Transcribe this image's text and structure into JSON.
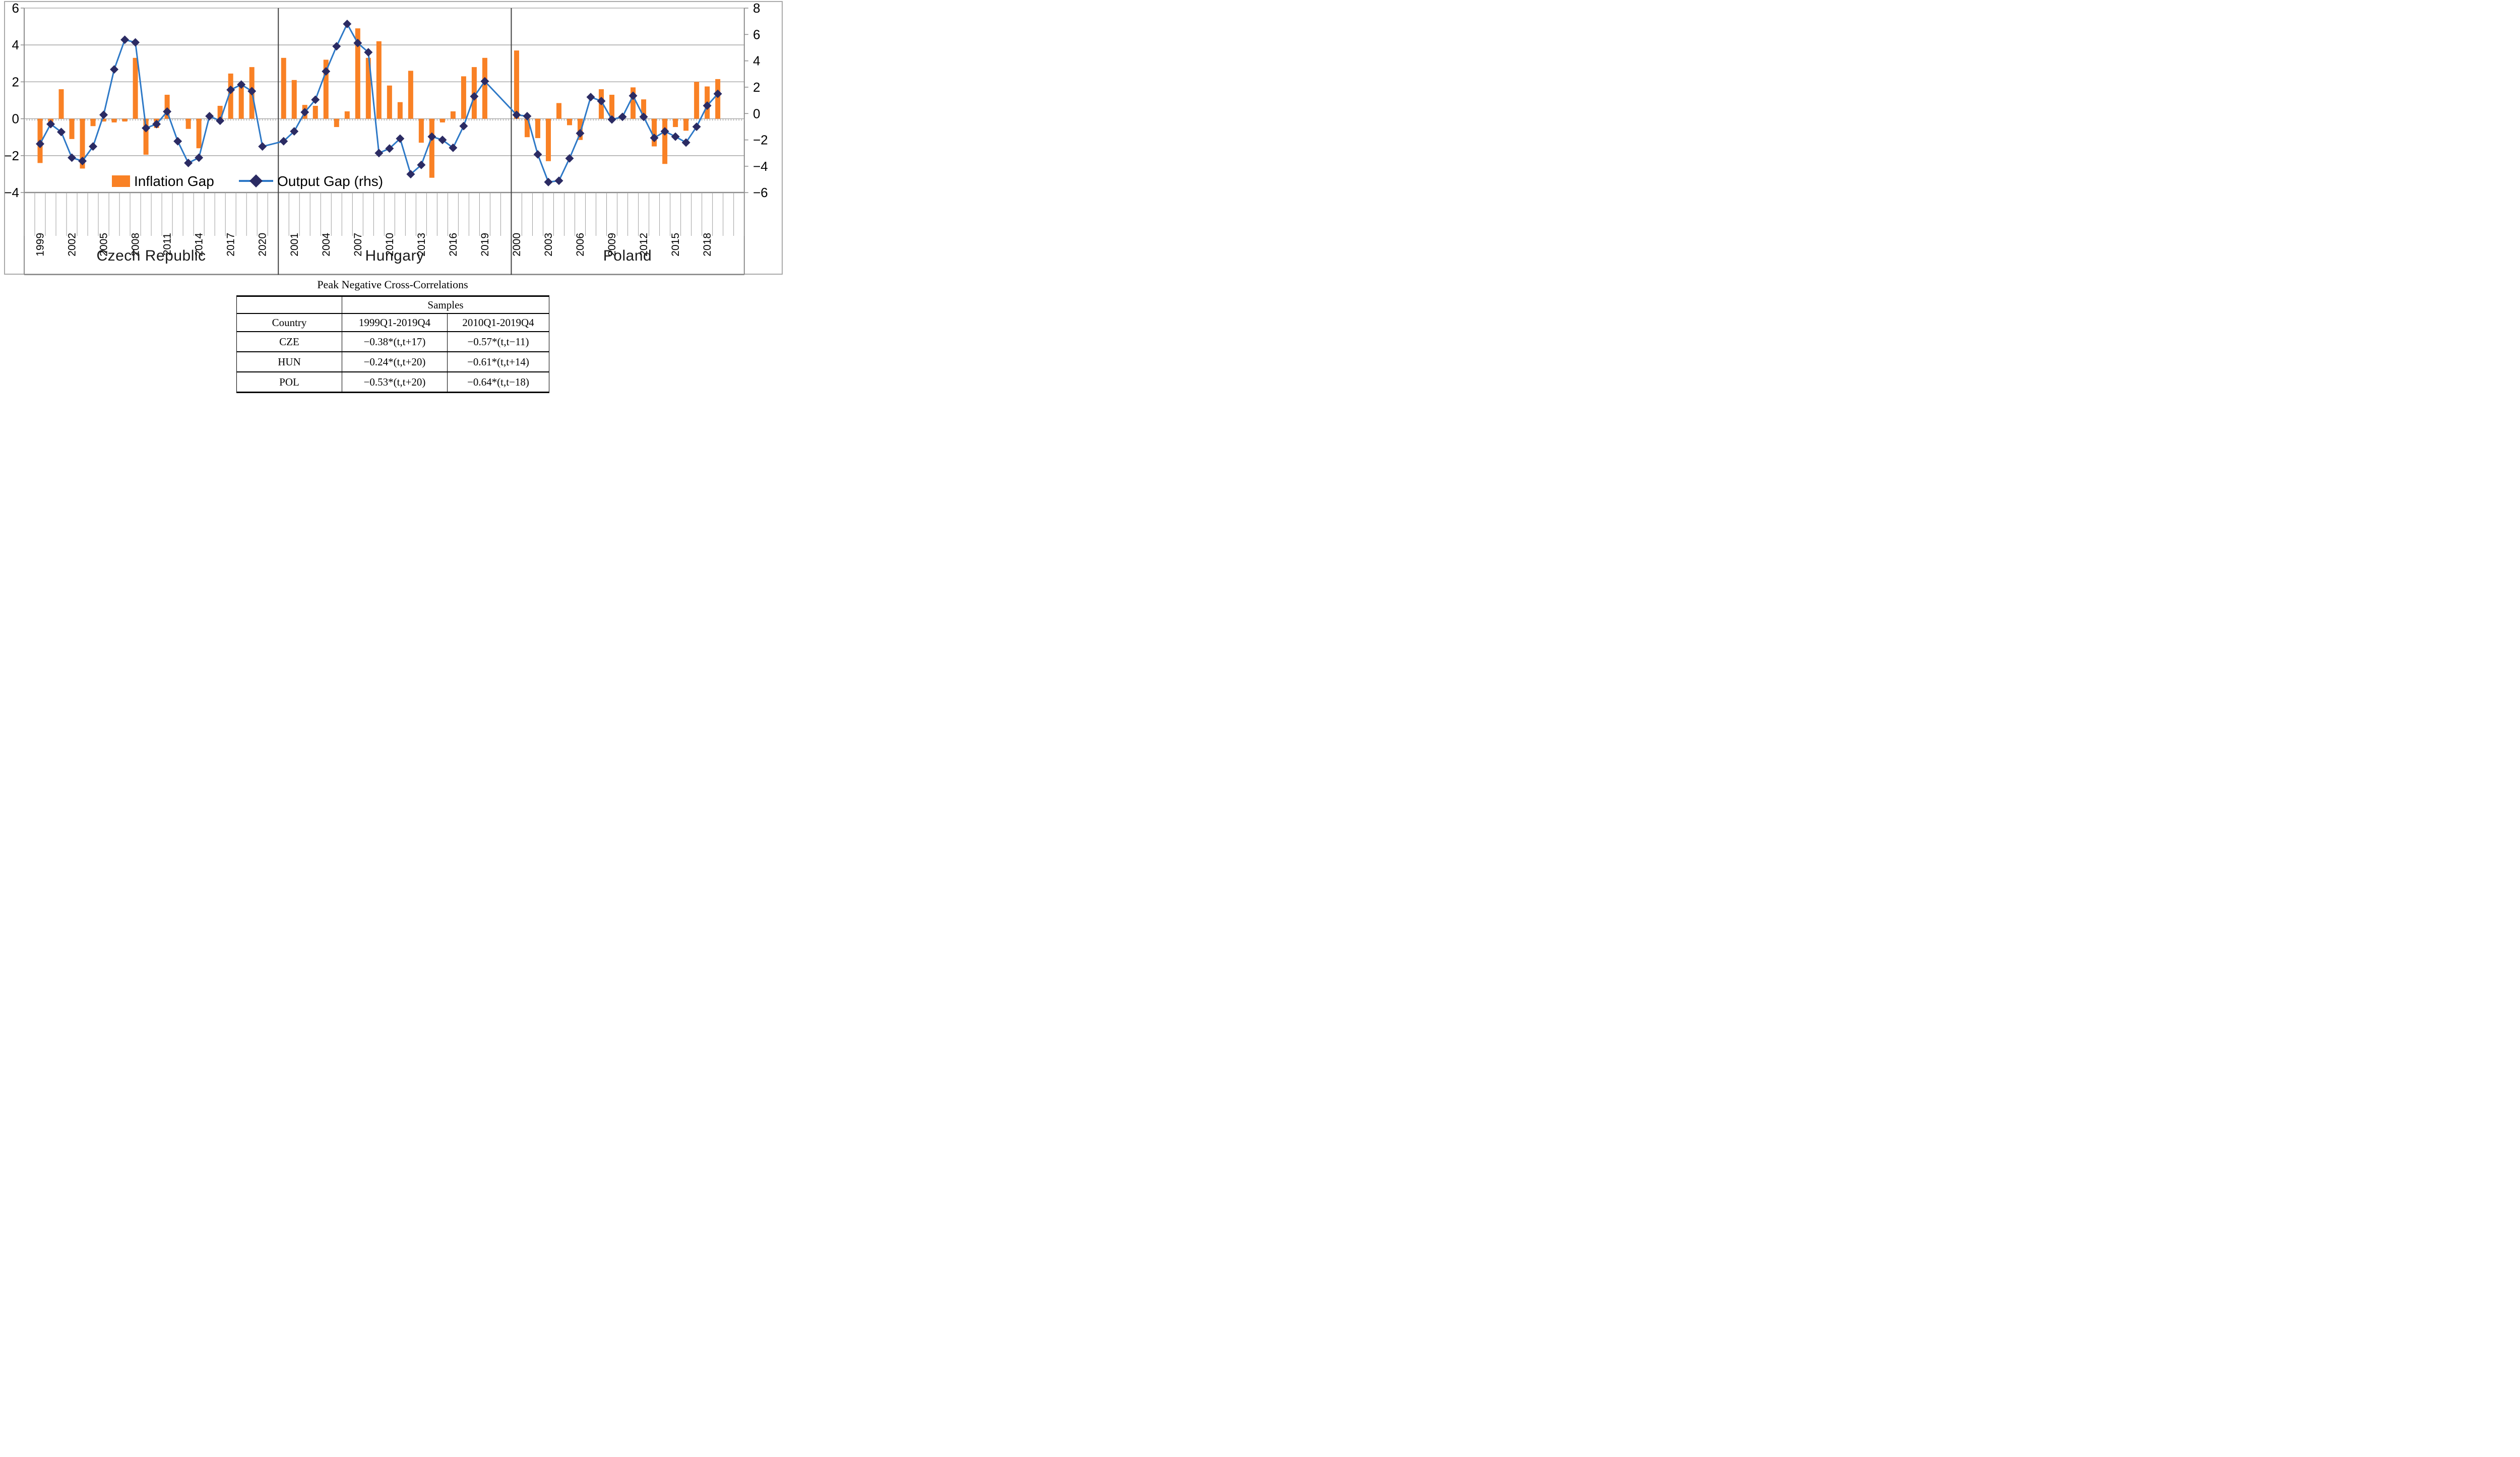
{
  "legend": {
    "inflation_gap_label": "Inflation Gap",
    "output_gap_label": "Output Gap (rhs)"
  },
  "axes": {
    "left_tick_labels": [
      "6",
      "4",
      "2",
      "0",
      "−2",
      "−4"
    ],
    "right_tick_labels": [
      "8",
      "6",
      "4",
      "2",
      "0",
      "−2",
      "−4",
      "−6"
    ]
  },
  "chart_data": {
    "type": "bar",
    "subtype": "combo bar + line with diamond markers, dual axis, three country panels",
    "title": "",
    "xlabel": "",
    "ylabel": "",
    "grid": true,
    "legend_entries": [
      "Inflation Gap",
      "Output Gap (rhs)"
    ],
    "legend_position": "inside-bottom-left",
    "left_axis": {
      "series": "Inflation Gap (bars)",
      "range": [
        -4,
        6
      ],
      "ticks": [
        6,
        4,
        2,
        0,
        -2,
        -4
      ]
    },
    "right_axis": {
      "series": "Output Gap (line, rhs)",
      "range": [
        -6,
        8
      ],
      "ticks": [
        8,
        6,
        4,
        2,
        0,
        -2,
        -4,
        -6
      ]
    },
    "groups": [
      {
        "label": "Czech Republic",
        "years": [
          1999,
          2000,
          2001,
          2002,
          2003,
          2004,
          2005,
          2006,
          2007,
          2008,
          2009,
          2010,
          2011,
          2012,
          2013,
          2014,
          2015,
          2016,
          2017,
          2018,
          2019,
          2020
        ],
        "x_tick_labels": [
          "1999",
          "2002",
          "2005",
          "2008",
          "2011",
          "2014",
          "2017",
          "2020"
        ],
        "inflation_gap": [
          -2.4,
          -0.3,
          1.6,
          -1.1,
          -2.7,
          -0.4,
          -0.15,
          -0.2,
          -0.15,
          3.3,
          -1.95,
          -0.5,
          1.3,
          0,
          -0.55,
          -1.6,
          0,
          0.7,
          2.45,
          1.95,
          2.8,
          0
        ],
        "output_gap_rhs": [
          -2.3,
          -0.8,
          -1.4,
          -3.35,
          -3.6,
          -2.5,
          -0.1,
          3.35,
          5.6,
          5.4,
          -1.1,
          -0.8,
          0.15,
          -2.1,
          -3.75,
          -3.35,
          -0.2,
          -0.55,
          1.8,
          2.2,
          1.7,
          -2.5
        ]
      },
      {
        "label": "Hungary",
        "years": [
          2000,
          2001,
          2002,
          2003,
          2004,
          2005,
          2006,
          2007,
          2008,
          2009,
          2010,
          2011,
          2012,
          2013,
          2014,
          2015,
          2016,
          2017,
          2018,
          2019
        ],
        "x_tick_labels": [
          "2001",
          "2004",
          "2007",
          "2010",
          "2013",
          "2016",
          "2019"
        ],
        "inflation_gap": [
          3.3,
          2.1,
          0.75,
          0.7,
          3.2,
          -0.45,
          0.4,
          4.9,
          3.3,
          4.2,
          1.8,
          0.9,
          2.6,
          -1.3,
          -3.2,
          -0.2,
          0.4,
          2.3,
          2.8,
          3.3
        ],
        "output_gap_rhs": [
          -2.1,
          -1.35,
          0.1,
          1.05,
          3.2,
          5.1,
          6.8,
          5.35,
          4.65,
          -3.0,
          -2.65,
          -1.9,
          -4.6,
          -3.9,
          -1.75,
          -2.0,
          -2.6,
          -0.95,
          1.3,
          2.45
        ]
      },
      {
        "label": "Poland",
        "years": [
          2000,
          2001,
          2002,
          2003,
          2004,
          2005,
          2006,
          2007,
          2008,
          2009,
          2010,
          2011,
          2012,
          2013,
          2014,
          2015,
          2016,
          2017,
          2018,
          2019
        ],
        "x_tick_labels": [
          "2000",
          "2003",
          "2006",
          "2009",
          "2012",
          "2015",
          "2018"
        ],
        "inflation_gap": [
          3.7,
          -1.0,
          -1.05,
          -2.3,
          0.85,
          -0.35,
          -1.15,
          0,
          1.6,
          1.3,
          0,
          1.7,
          1.05,
          -1.5,
          -2.45,
          -0.45,
          -0.65,
          2.0,
          1.75,
          2.15
        ],
        "output_gap_rhs": [
          -0.1,
          -0.2,
          -3.1,
          -5.2,
          -5.1,
          -3.4,
          -1.5,
          1.25,
          0.95,
          -0.45,
          -0.25,
          1.35,
          -0.25,
          -1.85,
          -1.35,
          -1.75,
          -2.2,
          -1.0,
          0.6,
          1.5
        ]
      }
    ]
  },
  "table": {
    "title": "Peak Negative Cross-Correlations",
    "samples_header": "Samples",
    "col_headers": [
      "Country",
      "1999Q1-2019Q4",
      "2010Q1-2019Q4"
    ],
    "rows": [
      [
        "CZE",
        "−0.38*(t,t+17)",
        "−0.57*(t,t−11)"
      ],
      [
        "HUN",
        "−0.24*(t,t+20)",
        "−0.61*(t,t+14)"
      ],
      [
        "POL",
        "−0.53*(t,t+20)",
        "−0.64*(t,t−18)"
      ]
    ]
  },
  "colors": {
    "bar_orange": "#F98125",
    "diamond_navy": "#2B2B63",
    "line_blue": "#2E79C7",
    "gridline": "#9E9E9E",
    "axis_gray": "#8C8C8C",
    "separator": "#3F3F3F",
    "text": "#000000"
  }
}
